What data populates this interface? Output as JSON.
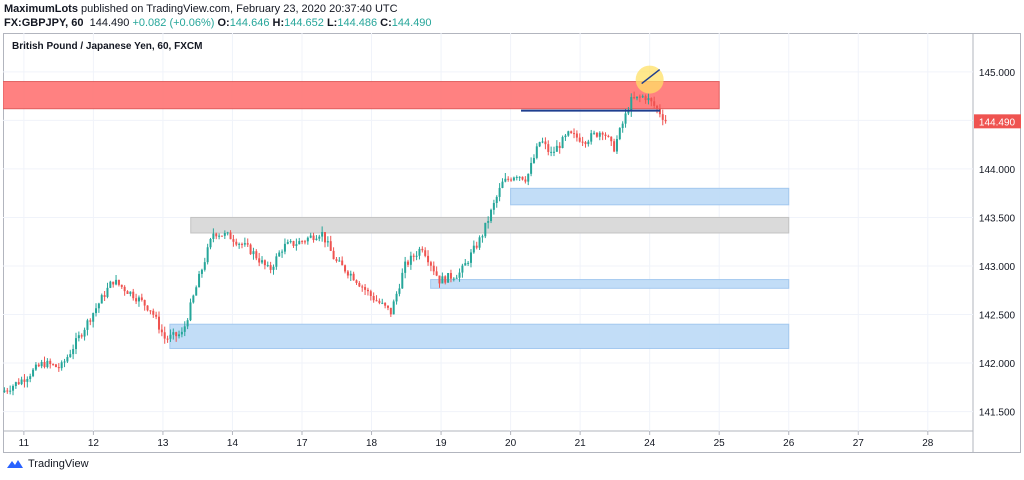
{
  "header": {
    "author": "MaximumLots",
    "published_text": " published on TradingView.com, February 23, 2020 20:37:40 UTC",
    "symbol": "FX:GBPJPY, 60",
    "last": "144.490",
    "change": "+0.082 (+0.06%)",
    "o_label": "O:",
    "o": "144.646",
    "h_label": "H:",
    "h": "144.652",
    "l_label": "L:",
    "l": "144.486",
    "c_label": "C:",
    "c": "144.490"
  },
  "chart_title": "British Pound / Japanese Yen, 60, FXCM",
  "price_tag": "144.490",
  "brand": "TradingView",
  "colors": {
    "up": "#26a69a",
    "down": "#ef5350",
    "resistance_zone": "#ff7b7b",
    "support_zone": "#bfdcf7",
    "gray_zone": "#d9d9d9",
    "trendline": "#1f3f8f",
    "highlight": "#ffe066",
    "price_tag_bg": "#ef5350"
  },
  "chart_data": {
    "type": "candlestick",
    "title": "British Pound / Japanese Yen, 60, FXCM",
    "y_ticks": [
      "145.000",
      "144.500",
      "144.000",
      "143.500",
      "143.000",
      "142.500",
      "142.000",
      "141.500"
    ],
    "y_values": [
      145.0,
      144.5,
      144.0,
      143.5,
      143.0,
      142.5,
      142.0,
      141.5
    ],
    "ylim": [
      141.3,
      145.4
    ],
    "x_ticks": [
      "11",
      "12",
      "13",
      "14",
      "17",
      "18",
      "19",
      "20",
      "21",
      "24",
      "25",
      "26",
      "27",
      "28"
    ],
    "x_tick_positions": [
      0,
      1,
      2,
      3,
      4,
      5,
      6,
      7,
      8,
      9,
      10,
      11,
      12,
      13
    ],
    "xlim": [
      -0.3,
      13.65
    ],
    "path": [
      [
        -0.3,
        141.7
      ],
      [
        0.0,
        141.83
      ],
      [
        0.3,
        142.0
      ],
      [
        0.55,
        141.95
      ],
      [
        0.8,
        142.25
      ],
      [
        1.0,
        142.5
      ],
      [
        1.3,
        142.85
      ],
      [
        1.6,
        142.7
      ],
      [
        1.85,
        142.55
      ],
      [
        2.05,
        142.25
      ],
      [
        2.3,
        142.3
      ],
      [
        2.55,
        142.9
      ],
      [
        2.75,
        143.35
      ],
      [
        3.0,
        143.3
      ],
      [
        3.3,
        143.15
      ],
      [
        3.55,
        142.95
      ],
      [
        3.75,
        143.2
      ],
      [
        4.0,
        143.25
      ],
      [
        4.3,
        143.35
      ],
      [
        4.5,
        143.05
      ],
      [
        4.75,
        142.9
      ],
      [
        5.0,
        142.7
      ],
      [
        5.3,
        142.52
      ],
      [
        5.5,
        143.0
      ],
      [
        5.75,
        143.2
      ],
      [
        6.0,
        142.85
      ],
      [
        6.3,
        142.93
      ],
      [
        6.6,
        143.3
      ],
      [
        6.9,
        143.85
      ],
      [
        7.1,
        143.95
      ],
      [
        7.25,
        143.9
      ],
      [
        7.45,
        144.3
      ],
      [
        7.6,
        144.15
      ],
      [
        7.85,
        144.35
      ],
      [
        8.1,
        144.3
      ],
      [
        8.35,
        144.4
      ],
      [
        8.5,
        144.2
      ],
      [
        8.75,
        144.7
      ],
      [
        8.95,
        144.75
      ],
      [
        9.15,
        144.6
      ],
      [
        9.25,
        144.5
      ]
    ],
    "zones": [
      {
        "name": "resistance",
        "x": [
          -0.3,
          10.0
        ],
        "y": [
          144.62,
          144.9
        ]
      },
      {
        "name": "gray",
        "x": [
          2.4,
          11.0
        ],
        "y": [
          143.34,
          143.5
        ]
      },
      {
        "name": "support-1",
        "x": [
          7.0,
          11.0
        ],
        "y": [
          143.63,
          143.8
        ]
      },
      {
        "name": "support-2",
        "x": [
          5.85,
          11.0
        ],
        "y": [
          142.77,
          142.86
        ]
      },
      {
        "name": "support-3",
        "x": [
          2.1,
          11.0
        ],
        "y": [
          142.15,
          142.4
        ]
      }
    ],
    "trendline": {
      "x": [
        7.15,
        9.15
      ],
      "y": [
        144.6,
        144.6
      ]
    },
    "last_price": 144.49,
    "grid": true
  }
}
